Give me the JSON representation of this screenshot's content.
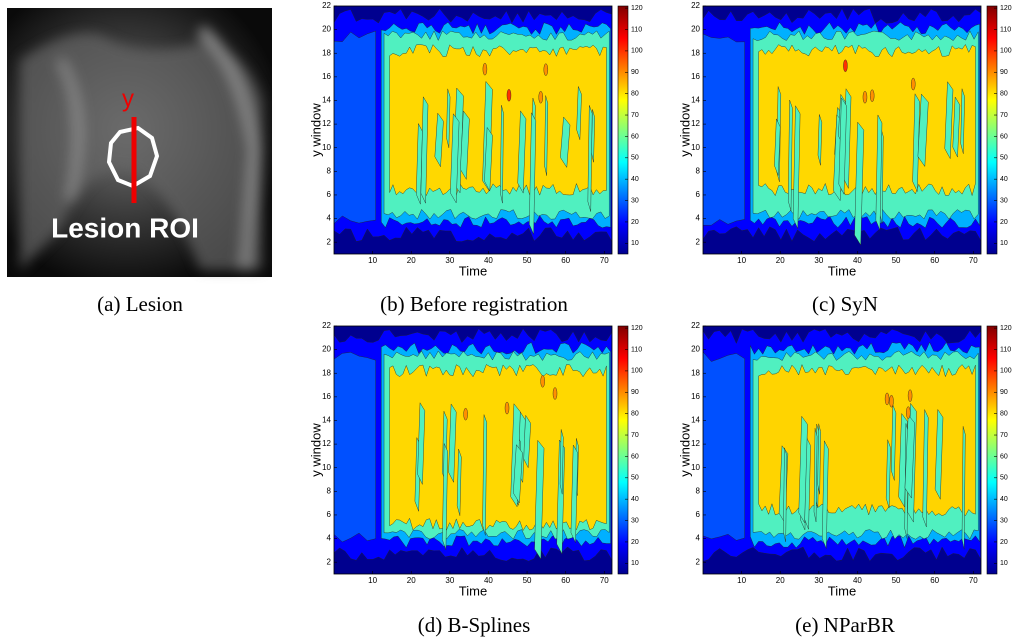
{
  "panels": [
    {
      "caption": "(a) Lesion",
      "image_label": "Lesion ROI",
      "line_label": "y"
    },
    {
      "caption": "(b) Before registration"
    },
    {
      "caption": "(c) SyN"
    },
    {
      "caption": "(d) B-Splines"
    },
    {
      "caption": "(e) NParBR"
    }
  ],
  "axes": {
    "xlabel": "Time",
    "ylabel": "y window",
    "xlim": [
      0,
      72
    ],
    "ylim": [
      1,
      22
    ],
    "xticks": [
      10,
      20,
      30,
      40,
      50,
      60,
      70
    ],
    "yticks": [
      2,
      4,
      6,
      8,
      10,
      12,
      14,
      16,
      18,
      20,
      22
    ],
    "colorbar_lim": [
      5,
      121
    ],
    "colorbar_ticks": [
      10,
      20,
      30,
      40,
      50,
      60,
      70,
      80,
      90,
      100,
      110,
      120
    ]
  }
}
